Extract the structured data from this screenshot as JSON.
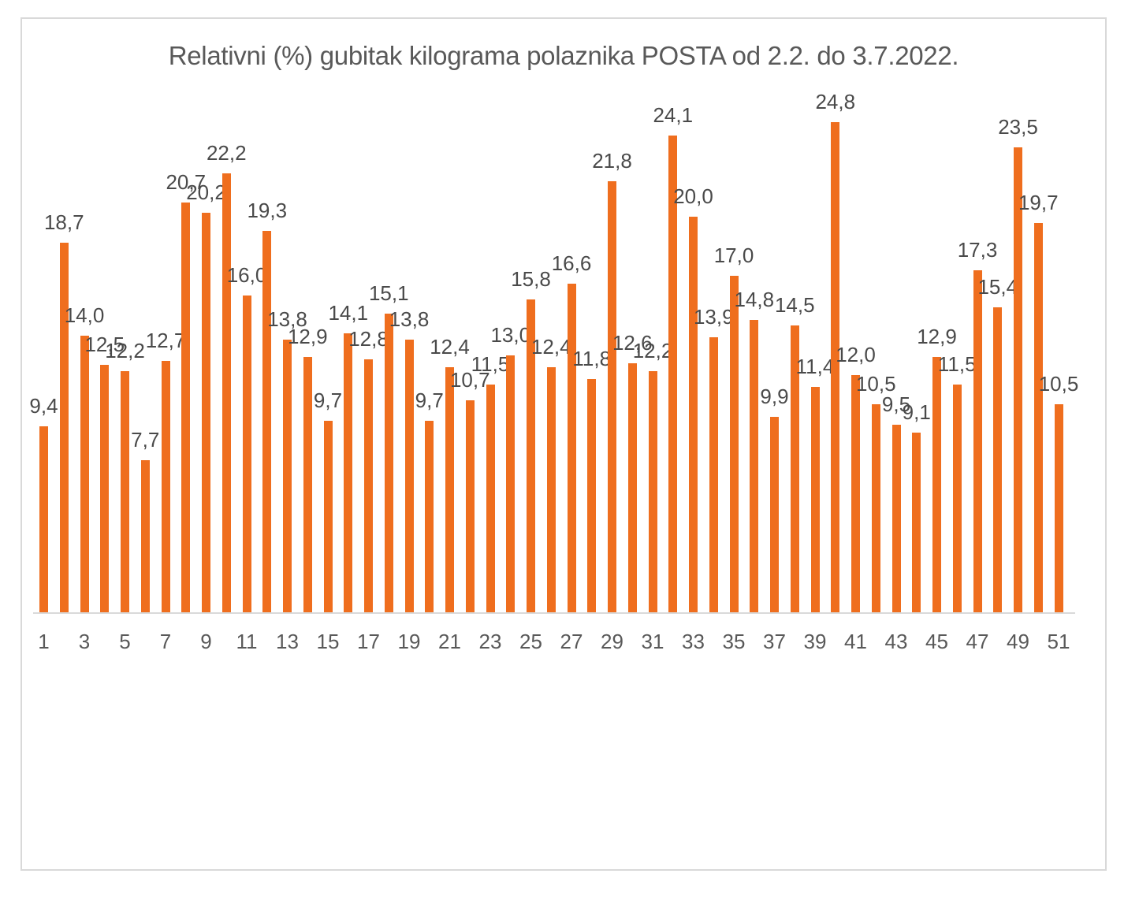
{
  "chart_data": {
    "type": "bar",
    "title": "Relativni (%) gubitak kilograma polaznika POSTA od 2.2. do 3.7.2022.",
    "x": [
      1,
      2,
      3,
      4,
      5,
      6,
      7,
      8,
      9,
      10,
      11,
      12,
      13,
      14,
      15,
      16,
      17,
      18,
      19,
      20,
      21,
      22,
      23,
      24,
      25,
      26,
      27,
      28,
      29,
      30,
      31,
      32,
      33,
      34,
      35,
      36,
      37,
      38,
      39,
      40,
      41,
      42,
      43,
      44,
      45,
      46,
      47,
      48,
      49,
      50,
      51
    ],
    "values": [
      9.4,
      18.7,
      14.0,
      12.5,
      12.2,
      7.7,
      12.7,
      20.7,
      20.2,
      22.2,
      16.0,
      19.3,
      13.8,
      12.9,
      9.7,
      14.1,
      12.8,
      15.1,
      13.8,
      9.7,
      12.4,
      10.7,
      11.5,
      13.0,
      15.8,
      12.4,
      16.6,
      11.8,
      21.8,
      12.6,
      12.2,
      24.1,
      20.0,
      13.9,
      17.0,
      14.8,
      9.9,
      14.5,
      11.4,
      24.8,
      12.0,
      10.5,
      9.5,
      9.1,
      12.9,
      11.5,
      17.3,
      15.4,
      23.5,
      19.7,
      10.5
    ],
    "value_labels": [
      "9,4",
      "18,7",
      "14,0",
      "12,5",
      "12,2",
      "7,7",
      "12,7",
      "20,7",
      "20,2",
      "22,2",
      "16,0",
      "19,3",
      "13,8",
      "12,9",
      "9,7",
      "14,1",
      "12,8",
      "15,1",
      "13,8",
      "9,7",
      "12,4",
      "10,7",
      "11,5",
      "13,0",
      "15,8",
      "12,4",
      "16,6",
      "11,8",
      "21,8",
      "12,6",
      "12,2",
      "24,1",
      "20,0",
      "13,9",
      "17,0",
      "14,8",
      "9,9",
      "14,5",
      "11,4",
      "24,8",
      "12,0",
      "10,5",
      "9,5",
      "9,1",
      "12,9",
      "11,5",
      "17,3",
      "15,4",
      "23,5",
      "19,7",
      "10,5"
    ],
    "x_tick_labels": [
      "1",
      "3",
      "5",
      "7",
      "9",
      "11",
      "13",
      "15",
      "17",
      "19",
      "21",
      "23",
      "25",
      "27",
      "29",
      "31",
      "33",
      "35",
      "37",
      "39",
      "41",
      "43",
      "45",
      "47",
      "49",
      "51"
    ],
    "xlabel": "",
    "ylabel": "",
    "ylim": [
      0,
      25.5
    ],
    "grid": false,
    "legend": false,
    "data_labels_position": "outside-end",
    "decimal_separator": ",",
    "colors": {
      "bar": "#EF6E1E",
      "title_text": "#595959",
      "label_text": "#4A4A4A",
      "axis_text": "#595959",
      "axis_line": "#D9D9D9",
      "frame_border": "#D9D9D9",
      "background": "#FFFFFF"
    }
  }
}
